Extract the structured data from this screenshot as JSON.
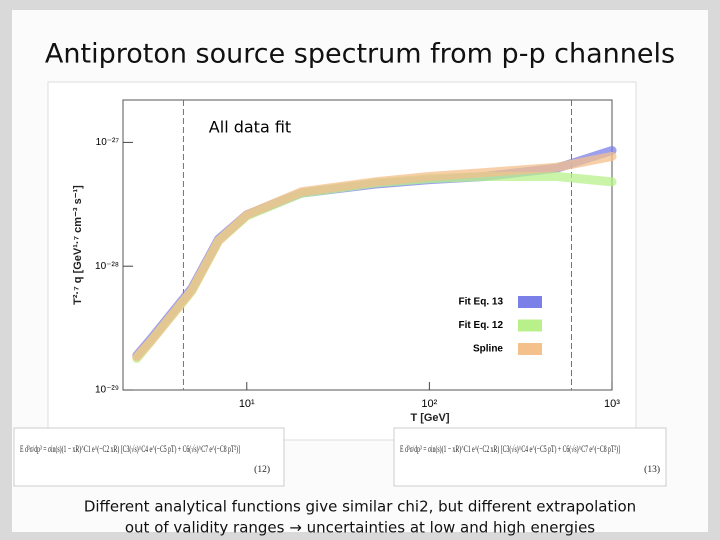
{
  "slide_title": "Antiproton source spectrum from p-p channels",
  "caption": [
    "Different analytical functions give similar chi2, but different extrapolation",
    "out of validity ranges → uncertainties at low and high energies"
  ],
  "equations": [
    {
      "text": "E d³σ/dp³ = σin(s)(1 − xR)^C1 e^(−C2 xR) [C3(√s)^C4 e^(−C5 pT) + C6(√s)^C7 e^(−C8 pT²)]",
      "number": "(12)"
    },
    {
      "text": "E d³σ/dp³ = σin(s)(1 − xR)^C1 e^(−C2 xR) [C3(√s)^C4 e^(−C5 pT) + C6(√s)^C7 e^(−C8 pT²)]",
      "number": "(13)"
    }
  ],
  "chart_data": {
    "type": "line",
    "title": "All data fit",
    "xlabel": "T [GeV]",
    "ylabel": "T²·⁷ q [GeV¹·⁷ cm⁻³ s⁻¹]",
    "xscale": "log",
    "yscale": "log",
    "xlim": [
      2.1,
      1000
    ],
    "ylim": [
      1e-29,
      2.2e-27
    ],
    "xticks": [
      {
        "value": 10,
        "label": "10¹"
      },
      {
        "value": 100,
        "label": "10²"
      },
      {
        "value": 1000,
        "label": "10³"
      }
    ],
    "yticks": [
      {
        "value": 1e-29,
        "label": "10⁻²⁹"
      },
      {
        "value": 1e-28,
        "label": "10⁻²⁸"
      },
      {
        "value": 1e-27,
        "label": "10⁻²⁷"
      }
    ],
    "vlines": [
      4.5,
      600
    ],
    "vline_color": "#c03cc0",
    "legend": "lower right",
    "x": [
      2.5,
      3,
      5,
      7,
      10,
      20,
      50,
      100,
      200,
      500,
      1000
    ],
    "series": [
      {
        "name": "Fit Eq. 13",
        "color": "#7b7fe8",
        "values": [
          1.9e-29,
          2.6e-29,
          6.6e-29,
          1.65e-28,
          2.6e-28,
          3.9e-28,
          4.6e-28,
          5e-28,
          5.3e-28,
          6.2e-28,
          8.6e-28
        ]
      },
      {
        "name": "Fit Eq. 12",
        "color": "#b8f08a",
        "values": [
          1.8e-29,
          2.5e-29,
          6.3e-29,
          1.6e-28,
          2.55e-28,
          3.9e-28,
          4.7e-28,
          5.1e-28,
          5.3e-28,
          5.3e-28,
          4.8e-28
        ]
      },
      {
        "name": "Spline",
        "color": "#f4c08c",
        "values": [
          1.85e-29,
          2.5e-29,
          6.4e-29,
          1.6e-28,
          2.6e-28,
          4e-28,
          4.8e-28,
          5.3e-28,
          5.7e-28,
          6.3e-28,
          7.7e-28
        ]
      }
    ]
  }
}
